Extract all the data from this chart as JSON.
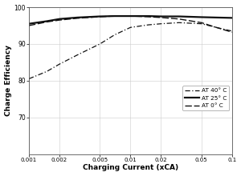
{
  "title": "",
  "xlabel": "Charging Current (xCA)",
  "ylabel": "Charge Efficiency",
  "ylim": [
    60,
    100
  ],
  "yticks": [
    70,
    80,
    90,
    100
  ],
  "xticks": [
    0.001,
    0.002,
    0.005,
    0.01,
    0.02,
    0.05,
    0.1
  ],
  "xtick_labels": [
    "0.001",
    "0.002",
    "0.005",
    "0.01",
    "0.02",
    "0.05",
    "0.1"
  ],
  "legend_labels": [
    "AT 40° C",
    "AT 25° C",
    "AT 0° C"
  ],
  "line_color": "#111111",
  "bg_color": "#ffffff",
  "curve_40": {
    "x": [
      0.001,
      0.0015,
      0.002,
      0.003,
      0.005,
      0.007,
      0.01,
      0.015,
      0.02,
      0.03,
      0.05,
      0.07,
      0.1
    ],
    "y": [
      80.5,
      82.5,
      84.5,
      87.0,
      90.0,
      92.5,
      94.5,
      95.2,
      95.5,
      95.8,
      95.5,
      94.5,
      93.5
    ]
  },
  "curve_25": {
    "x": [
      0.001,
      0.0015,
      0.002,
      0.003,
      0.005,
      0.007,
      0.01,
      0.015,
      0.02,
      0.03,
      0.05,
      0.07,
      0.1
    ],
    "y": [
      95.5,
      96.2,
      96.8,
      97.2,
      97.5,
      97.6,
      97.6,
      97.6,
      97.5,
      97.5,
      97.3,
      97.2,
      97.1
    ]
  },
  "curve_0": {
    "x": [
      0.001,
      0.0015,
      0.002,
      0.003,
      0.005,
      0.007,
      0.01,
      0.015,
      0.02,
      0.03,
      0.05,
      0.07,
      0.1
    ],
    "y": [
      95.0,
      96.0,
      96.5,
      97.0,
      97.4,
      97.6,
      97.6,
      97.4,
      97.2,
      96.8,
      95.8,
      94.5,
      93.2
    ]
  },
  "grid_color": "#cccccc",
  "spine_color": "#555555"
}
